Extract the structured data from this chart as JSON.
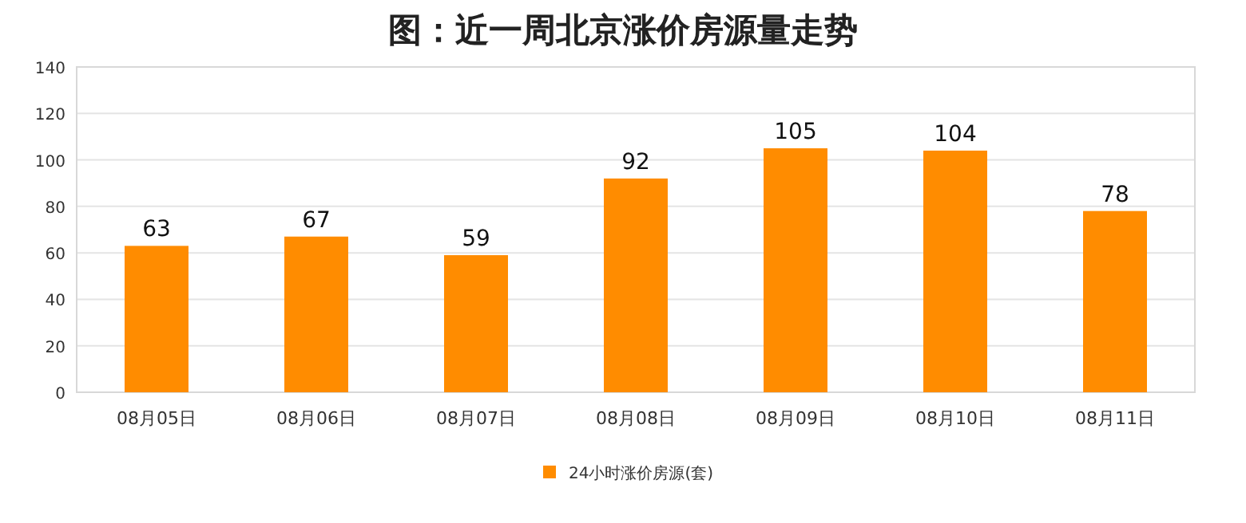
{
  "chart_data": {
    "type": "bar",
    "title": "图：近一周北京涨价房源量走势",
    "categories": [
      "08月05日",
      "08月06日",
      "08月07日",
      "08月08日",
      "08月09日",
      "08月10日",
      "08月11日"
    ],
    "series": [
      {
        "name": "24小时涨价房源(套)",
        "color": "#ff8c00",
        "values": [
          63,
          67,
          59,
          92,
          105,
          104,
          78
        ]
      }
    ],
    "ylim": [
      0,
      140
    ],
    "yticks": [
      0,
      20,
      40,
      60,
      80,
      100,
      120,
      140
    ],
    "grid": "y",
    "legend": "bottom",
    "data_labels": true
  }
}
